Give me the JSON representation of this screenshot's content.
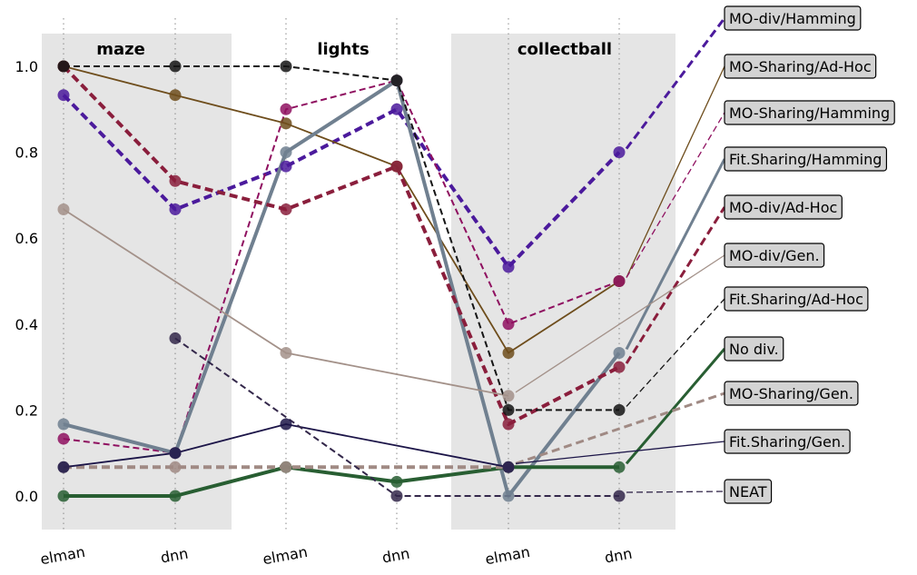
{
  "chart_data": {
    "type": "line",
    "groups": [
      "maze",
      "lights",
      "collectball"
    ],
    "categories": [
      "elman",
      "dnn",
      "elman",
      "dnn",
      "elman",
      "dnn"
    ],
    "yticks": [
      "0.0",
      "0.2",
      "0.4",
      "0.6",
      "0.8",
      "1.0"
    ],
    "ylim": [
      -0.08,
      1.08
    ],
    "grid": "vertical dotted",
    "shaded_groups": [
      "maze",
      "collectball"
    ],
    "legend_placement": "right, with leader lines to series end points",
    "series": [
      {
        "name": "MO-div/Hamming",
        "color": "#4B1A9C",
        "style": "bold-dashed",
        "values": [
          0.933,
          0.667,
          0.767,
          0.9,
          0.533,
          0.8
        ]
      },
      {
        "name": "MO-Sharing/Ad-Hoc",
        "color": "#6E4D1C",
        "style": "solid",
        "values": [
          1.0,
          0.933,
          0.867,
          0.767,
          0.333,
          0.5
        ]
      },
      {
        "name": "MO-Sharing/Hamming",
        "color": "#8F1060",
        "style": "dashed",
        "values": [
          0.133,
          0.1,
          0.9,
          0.967,
          0.4,
          0.5
        ]
      },
      {
        "name": "Fit.Sharing/Hamming",
        "color": "#708090",
        "style": "bold-solid",
        "values": [
          0.167,
          0.1,
          0.8,
          0.967,
          0.0,
          0.333
        ]
      },
      {
        "name": "MO-div/Ad-Hoc",
        "color": "#8A1E3C",
        "style": "bold-dashed",
        "values": [
          1.0,
          0.733,
          0.667,
          0.767,
          0.167,
          0.3
        ]
      },
      {
        "name": "MO-div/Gen.",
        "color": "#A39189",
        "style": "solid",
        "values": [
          0.667,
          null,
          0.333,
          null,
          0.233,
          null
        ]
      },
      {
        "name": "Fit.Sharing/Ad-Hoc",
        "color": "#141414",
        "style": "dashed",
        "values": [
          1.0,
          1.0,
          1.0,
          0.967,
          0.2,
          0.2
        ]
      },
      {
        "name": "No div.",
        "color": "#285E32",
        "style": "bold-solid",
        "values": [
          0.0,
          0.0,
          0.067,
          0.033,
          0.067,
          0.067
        ]
      },
      {
        "name": "MO-Sharing/Gen.",
        "color": "#A08A84",
        "style": "bold-dashed",
        "values": [
          0.067,
          0.067,
          0.067,
          null,
          0.067,
          null
        ]
      },
      {
        "name": "Fit.Sharing/Gen.",
        "color": "#1C1548",
        "style": "solid",
        "values": [
          0.067,
          0.1,
          0.167,
          null,
          0.067,
          null
        ]
      },
      {
        "name": "NEAT",
        "color": "#33274A",
        "style": "dashed",
        "values": [
          null,
          0.367,
          null,
          0.0,
          null,
          0.0
        ]
      }
    ]
  }
}
